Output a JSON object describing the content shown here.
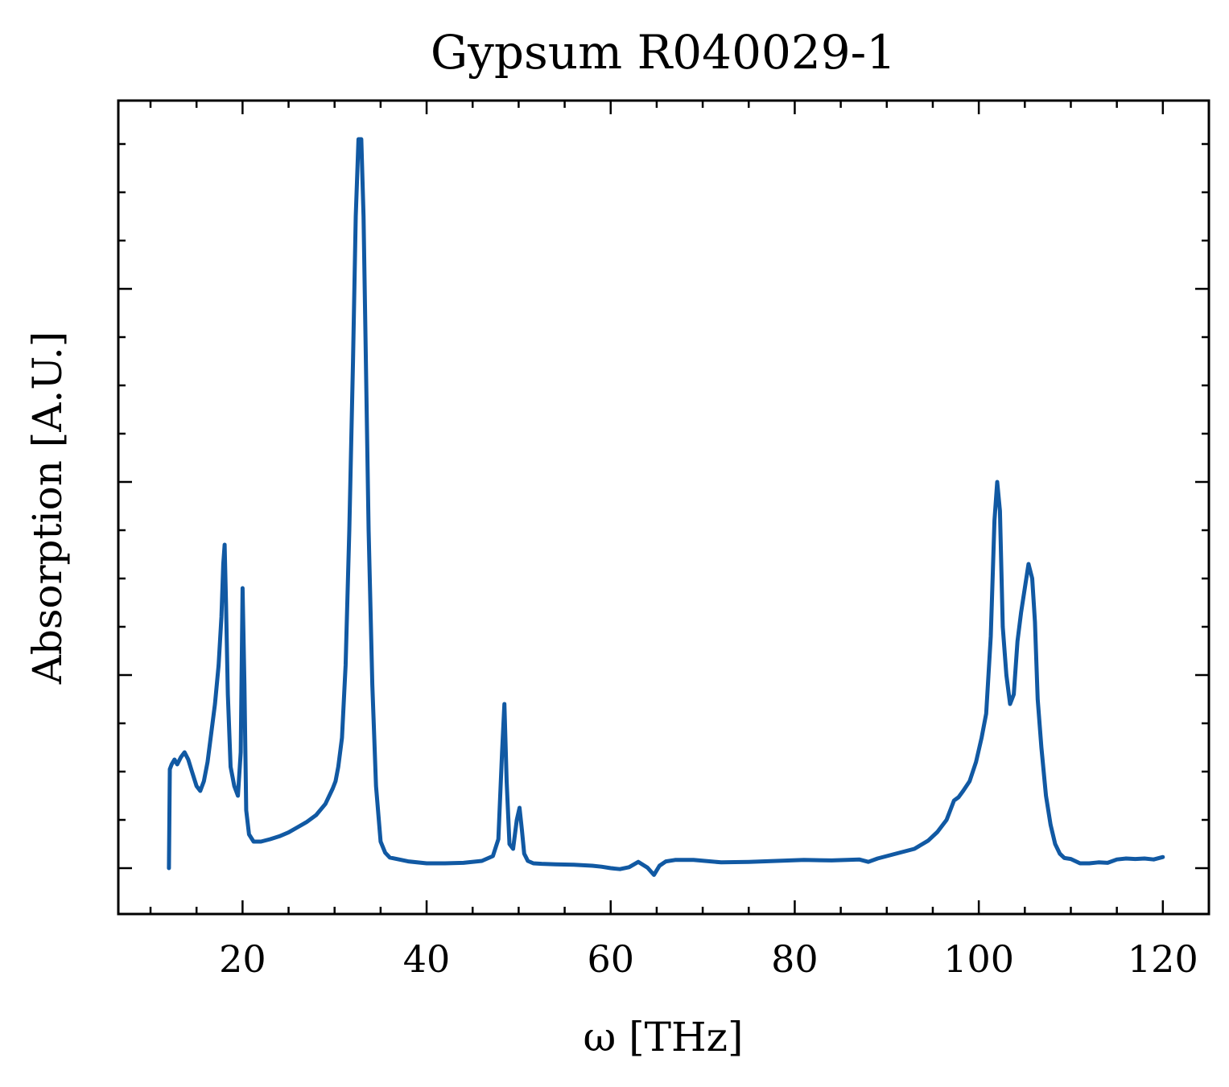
{
  "chart_data": {
    "type": "line",
    "title": "Gypsum R040029-1",
    "xlabel": "ω [THz]",
    "ylabel": "Absorption [A.U.]",
    "xlim": [
      6.5,
      125
    ],
    "ylim": [
      -0.095,
      1.59
    ],
    "x_ticks": [
      20,
      40,
      60,
      80,
      100,
      120
    ],
    "x_tick_labels": [
      "20",
      "40",
      "60",
      "80",
      "100",
      "120"
    ],
    "y_major_ticks": [
      0,
      0.4,
      0.8,
      1.2
    ],
    "y_minor_step": 0.1,
    "x_minor_step": 5,
    "y_tick_labels_shown": false,
    "grid": false,
    "tick_direction": "in",
    "line_color": "#1159a3",
    "series": [
      {
        "x": [
          12.0,
          12.1,
          12.3,
          12.6,
          12.9,
          13.3,
          13.7,
          14.1,
          14.5,
          15.0,
          15.4,
          15.8,
          16.2,
          16.6,
          17.0,
          17.4,
          17.7,
          17.9,
          18.05,
          18.2,
          18.4,
          18.7,
          19.1,
          19.5,
          19.8,
          20.0,
          20.2,
          20.4,
          20.7,
          21.2,
          22.0,
          23.0,
          24.0,
          25.0,
          26.0,
          27.0,
          28.0,
          29.0,
          29.8,
          30.1,
          30.4,
          30.8,
          31.2,
          31.6,
          32.0,
          32.3,
          32.6,
          32.9,
          33.15,
          33.4,
          33.7,
          34.1,
          34.5,
          35.0,
          35.5,
          36.0,
          37.0,
          38.0,
          40.0,
          42.0,
          44.0,
          46.0,
          47.2,
          47.8,
          48.2,
          48.45,
          48.7,
          49.0,
          49.4,
          49.8,
          50.1,
          50.35,
          50.6,
          51.0,
          51.6,
          52.5,
          54.0,
          56.0,
          58.0,
          59.0,
          60.0,
          61.0,
          62.0,
          63.0,
          64.0,
          64.7,
          65.3,
          66.0,
          67.0,
          69.0,
          72.0,
          75.0,
          78.0,
          81.0,
          84.0,
          87.0,
          88.0,
          89.0,
          91.0,
          93.0,
          94.5,
          95.5,
          96.5,
          97.3,
          97.8,
          98.3,
          99.0,
          99.7,
          100.3,
          100.8,
          101.3,
          101.7,
          102.0,
          102.3,
          102.6,
          103.0,
          103.4,
          103.8,
          104.2,
          104.6,
          105.0,
          105.4,
          105.8,
          106.1,
          106.4,
          106.8,
          107.3,
          107.8,
          108.3,
          108.8,
          109.3,
          110.0,
          111.0,
          112.0,
          113.0,
          114.0,
          115.0,
          116.0,
          117.0,
          118.0,
          119.0,
          120.0
        ],
        "y": [
          0.0,
          0.205,
          0.215,
          0.225,
          0.215,
          0.23,
          0.24,
          0.225,
          0.2,
          0.17,
          0.16,
          0.18,
          0.22,
          0.28,
          0.34,
          0.42,
          0.52,
          0.63,
          0.67,
          0.55,
          0.36,
          0.21,
          0.17,
          0.15,
          0.24,
          0.58,
          0.38,
          0.12,
          0.07,
          0.055,
          0.055,
          0.06,
          0.066,
          0.074,
          0.085,
          0.096,
          0.11,
          0.133,
          0.165,
          0.18,
          0.21,
          0.27,
          0.42,
          0.7,
          1.05,
          1.35,
          1.51,
          1.51,
          1.35,
          1.05,
          0.7,
          0.38,
          0.17,
          0.055,
          0.032,
          0.022,
          0.018,
          0.014,
          0.01,
          0.01,
          0.011,
          0.015,
          0.025,
          0.06,
          0.24,
          0.34,
          0.18,
          0.05,
          0.04,
          0.1,
          0.125,
          0.08,
          0.03,
          0.015,
          0.01,
          0.009,
          0.008,
          0.007,
          0.005,
          0.003,
          0.0,
          -0.002,
          0.002,
          0.013,
          0.001,
          -0.014,
          0.005,
          0.014,
          0.017,
          0.017,
          0.012,
          0.013,
          0.015,
          0.017,
          0.016,
          0.018,
          0.013,
          0.02,
          0.03,
          0.04,
          0.057,
          0.075,
          0.1,
          0.14,
          0.147,
          0.16,
          0.18,
          0.22,
          0.27,
          0.32,
          0.48,
          0.72,
          0.8,
          0.74,
          0.5,
          0.4,
          0.34,
          0.36,
          0.47,
          0.53,
          0.58,
          0.63,
          0.6,
          0.51,
          0.35,
          0.25,
          0.15,
          0.09,
          0.05,
          0.03,
          0.021,
          0.019,
          0.01,
          0.01,
          0.012,
          0.011,
          0.018,
          0.02,
          0.019,
          0.02,
          0.018,
          0.023
        ]
      }
    ]
  }
}
